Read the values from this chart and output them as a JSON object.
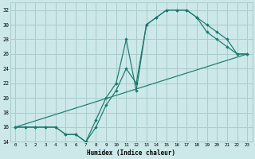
{
  "title": "",
  "xlabel": "Humidex (Indice chaleur)",
  "ylabel": "",
  "bg_color": "#cce8e8",
  "grid_color": "#aacccc",
  "line_color": "#1a7a6e",
  "xlim": [
    -0.5,
    23.5
  ],
  "ylim": [
    14,
    33
  ],
  "xticks": [
    0,
    1,
    2,
    3,
    4,
    5,
    6,
    7,
    8,
    9,
    10,
    11,
    12,
    13,
    14,
    15,
    16,
    17,
    18,
    19,
    20,
    21,
    22,
    23
  ],
  "yticks": [
    14,
    16,
    18,
    20,
    22,
    24,
    26,
    28,
    30,
    32
  ],
  "line1_x": [
    0,
    1,
    2,
    3,
    4,
    5,
    6,
    7,
    8,
    9,
    10,
    11,
    12,
    13,
    14,
    15,
    16,
    17,
    18,
    19,
    20,
    21,
    22,
    23
  ],
  "line1_y": [
    16,
    16,
    16,
    16,
    16,
    15,
    15,
    14,
    16,
    19,
    21,
    24,
    22,
    30,
    31,
    32,
    32,
    32,
    31,
    30,
    29,
    28,
    26,
    26
  ],
  "line2_x": [
    0,
    1,
    2,
    3,
    4,
    5,
    6,
    7,
    8,
    9,
    10,
    11,
    12,
    13,
    14,
    15,
    16,
    17,
    18,
    19,
    20,
    21,
    22,
    23
  ],
  "line2_y": [
    16,
    16,
    16,
    16,
    16,
    15,
    15,
    14,
    17,
    20,
    22,
    28,
    21,
    30,
    31,
    32,
    32,
    32,
    31,
    29,
    28,
    27,
    26,
    26
  ],
  "line3_x": [
    0,
    23
  ],
  "line3_y": [
    16,
    26
  ]
}
